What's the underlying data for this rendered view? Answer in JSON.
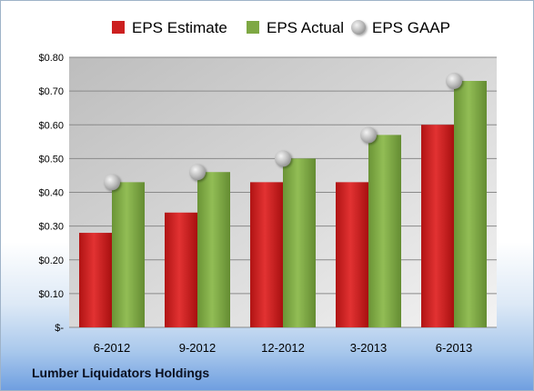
{
  "company_name": "Lumber Liquidators Holdings",
  "chart_data": {
    "type": "bar",
    "title": "",
    "xlabel": "",
    "ylabel": "",
    "categories": [
      "6-2012",
      "9-2012",
      "12-2012",
      "3-2013",
      "6-2013"
    ],
    "series": [
      {
        "name": "EPS Estimate",
        "kind": "bar",
        "color": "#cc1f1f",
        "values": [
          0.28,
          0.34,
          0.43,
          0.43,
          0.6
        ]
      },
      {
        "name": "EPS Actual",
        "kind": "bar",
        "color": "#7ea843",
        "values": [
          0.43,
          0.46,
          0.5,
          0.57,
          0.73
        ]
      },
      {
        "name": "EPS GAAP",
        "kind": "marker",
        "color": "#b8b8b8",
        "values": [
          0.43,
          0.46,
          0.5,
          0.57,
          0.73
        ]
      }
    ],
    "ylim": [
      0,
      0.8
    ],
    "yticks": [
      0,
      0.1,
      0.2,
      0.3,
      0.4,
      0.5,
      0.6,
      0.7,
      0.8
    ],
    "ytick_labels": [
      "$-",
      "$0.10",
      "$0.20",
      "$0.30",
      "$0.40",
      "$0.50",
      "$0.60",
      "$0.70",
      "$0.80"
    ],
    "grid": true,
    "legend": "top"
  }
}
